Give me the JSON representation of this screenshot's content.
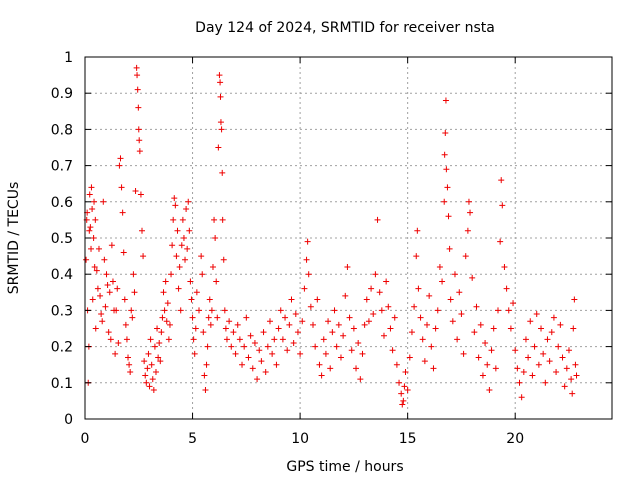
{
  "chart_data": {
    "type": "scatter",
    "title": "Day 124 of 2024, SRMTID for receiver nsta",
    "xlabel": "GPS time / hours",
    "ylabel": "SRMTID / TECUs",
    "xlim": [
      0,
      24.5
    ],
    "ylim": [
      0,
      1
    ],
    "xticks": [
      0,
      5,
      10,
      15,
      20
    ],
    "xtick_labels": [
      "0",
      "5",
      "10",
      "15",
      "20"
    ],
    "yticks": [
      0,
      0.1,
      0.2,
      0.3,
      0.4,
      0.5,
      0.6,
      0.7,
      0.8,
      0.9,
      1
    ],
    "ytick_labels": [
      "0",
      "0.1",
      "0.2",
      "0.3",
      "0.4",
      "0.5",
      "0.6",
      "0.7",
      "0.8",
      "0.9",
      "1"
    ],
    "grid": true,
    "marker": "+",
    "color": "#ee0000",
    "series": [
      {
        "name": "nsta",
        "points": [
          [
            0.05,
            0.44
          ],
          [
            0.08,
            0.55
          ],
          [
            0.1,
            0.57
          ],
          [
            0.12,
            0.3
          ],
          [
            0.15,
            0.1
          ],
          [
            0.18,
            0.2
          ],
          [
            0.2,
            0.52
          ],
          [
            0.22,
            0.62
          ],
          [
            0.25,
            0.53
          ],
          [
            0.28,
            0.47
          ],
          [
            0.3,
            0.64
          ],
          [
            0.33,
            0.58
          ],
          [
            0.36,
            0.33
          ],
          [
            0.4,
            0.5
          ],
          [
            0.42,
            0.6
          ],
          [
            0.45,
            0.42
          ],
          [
            0.48,
            0.55
          ],
          [
            0.5,
            0.25
          ],
          [
            0.55,
            0.41
          ],
          [
            0.6,
            0.36
          ],
          [
            0.65,
            0.47
          ],
          [
            0.7,
            0.34
          ],
          [
            0.75,
            0.29
          ],
          [
            0.8,
            0.27
          ],
          [
            0.85,
            0.6
          ],
          [
            0.9,
            0.44
          ],
          [
            0.95,
            0.31
          ],
          [
            1.0,
            0.4
          ],
          [
            1.05,
            0.37
          ],
          [
            1.1,
            0.24
          ],
          [
            1.15,
            0.35
          ],
          [
            1.2,
            0.22
          ],
          [
            1.25,
            0.48
          ],
          [
            1.3,
            0.38
          ],
          [
            1.35,
            0.3
          ],
          [
            1.4,
            0.18
          ],
          [
            1.45,
            0.3
          ],
          [
            1.5,
            0.36
          ],
          [
            1.55,
            0.21
          ],
          [
            1.6,
            0.7
          ],
          [
            1.65,
            0.72
          ],
          [
            1.7,
            0.64
          ],
          [
            1.75,
            0.57
          ],
          [
            1.8,
            0.46
          ],
          [
            1.85,
            0.33
          ],
          [
            1.9,
            0.26
          ],
          [
            1.95,
            0.22
          ],
          [
            2.0,
            0.17
          ],
          [
            2.05,
            0.15
          ],
          [
            2.1,
            0.13
          ],
          [
            2.15,
            0.3
          ],
          [
            2.2,
            0.28
          ],
          [
            2.25,
            0.4
          ],
          [
            2.3,
            0.35
          ],
          [
            2.35,
            0.63
          ],
          [
            2.4,
            0.97
          ],
          [
            2.42,
            0.95
          ],
          [
            2.45,
            0.91
          ],
          [
            2.48,
            0.86
          ],
          [
            2.5,
            0.8
          ],
          [
            2.52,
            0.77
          ],
          [
            2.55,
            0.74
          ],
          [
            2.6,
            0.62
          ],
          [
            2.65,
            0.52
          ],
          [
            2.7,
            0.45
          ],
          [
            2.75,
            0.16
          ],
          [
            2.8,
            0.12
          ],
          [
            2.85,
            0.1
          ],
          [
            2.9,
            0.14
          ],
          [
            2.95,
            0.18
          ],
          [
            3.0,
            0.09
          ],
          [
            3.05,
            0.22
          ],
          [
            3.1,
            0.15
          ],
          [
            3.15,
            0.11
          ],
          [
            3.2,
            0.08
          ],
          [
            3.25,
            0.2
          ],
          [
            3.3,
            0.13
          ],
          [
            3.35,
            0.25
          ],
          [
            3.4,
            0.17
          ],
          [
            3.45,
            0.21
          ],
          [
            3.5,
            0.16
          ],
          [
            3.55,
            0.24
          ],
          [
            3.6,
            0.28
          ],
          [
            3.65,
            0.35
          ],
          [
            3.7,
            0.3
          ],
          [
            3.75,
            0.38
          ],
          [
            3.8,
            0.27
          ],
          [
            3.85,
            0.32
          ],
          [
            3.9,
            0.22
          ],
          [
            3.95,
            0.26
          ],
          [
            4.0,
            0.4
          ],
          [
            4.05,
            0.48
          ],
          [
            4.1,
            0.55
          ],
          [
            4.15,
            0.61
          ],
          [
            4.2,
            0.59
          ],
          [
            4.25,
            0.45
          ],
          [
            4.3,
            0.52
          ],
          [
            4.35,
            0.36
          ],
          [
            4.4,
            0.42
          ],
          [
            4.45,
            0.3
          ],
          [
            4.5,
            0.48
          ],
          [
            4.55,
            0.55
          ],
          [
            4.6,
            0.5
          ],
          [
            4.65,
            0.44
          ],
          [
            4.7,
            0.58
          ],
          [
            4.75,
            0.47
          ],
          [
            4.8,
            0.6
          ],
          [
            4.85,
            0.52
          ],
          [
            4.9,
            0.38
          ],
          [
            4.95,
            0.33
          ],
          [
            5.0,
            0.28
          ],
          [
            5.05,
            0.22
          ],
          [
            5.1,
            0.18
          ],
          [
            5.15,
            0.25
          ],
          [
            5.2,
            0.35
          ],
          [
            5.3,
            0.3
          ],
          [
            5.4,
            0.45
          ],
          [
            5.45,
            0.4
          ],
          [
            5.5,
            0.24
          ],
          [
            5.55,
            0.12
          ],
          [
            5.6,
            0.08
          ],
          [
            5.65,
            0.15
          ],
          [
            5.7,
            0.2
          ],
          [
            5.75,
            0.28
          ],
          [
            5.8,
            0.33
          ],
          [
            5.85,
            0.26
          ],
          [
            5.9,
            0.3
          ],
          [
            5.95,
            0.42
          ],
          [
            6.0,
            0.55
          ],
          [
            6.05,
            0.5
          ],
          [
            6.1,
            0.38
          ],
          [
            6.15,
            0.28
          ],
          [
            6.2,
            0.75
          ],
          [
            6.25,
            0.95
          ],
          [
            6.28,
            0.93
          ],
          [
            6.3,
            0.89
          ],
          [
            6.32,
            0.82
          ],
          [
            6.35,
            0.8
          ],
          [
            6.38,
            0.68
          ],
          [
            6.4,
            0.55
          ],
          [
            6.45,
            0.44
          ],
          [
            6.5,
            0.3
          ],
          [
            6.55,
            0.25
          ],
          [
            6.6,
            0.22
          ],
          [
            6.7,
            0.27
          ],
          [
            6.8,
            0.2
          ],
          [
            6.9,
            0.24
          ],
          [
            7.0,
            0.18
          ],
          [
            7.1,
            0.26
          ],
          [
            7.2,
            0.22
          ],
          [
            7.3,
            0.15
          ],
          [
            7.4,
            0.2
          ],
          [
            7.5,
            0.28
          ],
          [
            7.6,
            0.17
          ],
          [
            7.7,
            0.23
          ],
          [
            7.8,
            0.14
          ],
          [
            7.9,
            0.21
          ],
          [
            8.0,
            0.11
          ],
          [
            8.1,
            0.19
          ],
          [
            8.2,
            0.16
          ],
          [
            8.3,
            0.24
          ],
          [
            8.4,
            0.13
          ],
          [
            8.5,
            0.2
          ],
          [
            8.6,
            0.27
          ],
          [
            8.7,
            0.18
          ],
          [
            8.8,
            0.22
          ],
          [
            8.9,
            0.15
          ],
          [
            9.0,
            0.25
          ],
          [
            9.1,
            0.3
          ],
          [
            9.2,
            0.22
          ],
          [
            9.3,
            0.28
          ],
          [
            9.4,
            0.19
          ],
          [
            9.5,
            0.26
          ],
          [
            9.6,
            0.33
          ],
          [
            9.7,
            0.21
          ],
          [
            9.8,
            0.29
          ],
          [
            9.9,
            0.24
          ],
          [
            10.0,
            0.18
          ],
          [
            10.1,
            0.27
          ],
          [
            10.2,
            0.36
          ],
          [
            10.3,
            0.44
          ],
          [
            10.35,
            0.49
          ],
          [
            10.4,
            0.4
          ],
          [
            10.5,
            0.31
          ],
          [
            10.6,
            0.26
          ],
          [
            10.7,
            0.2
          ],
          [
            10.8,
            0.33
          ],
          [
            10.9,
            0.15
          ],
          [
            11.0,
            0.12
          ],
          [
            11.1,
            0.22
          ],
          [
            11.2,
            0.18
          ],
          [
            11.3,
            0.27
          ],
          [
            11.4,
            0.14
          ],
          [
            11.5,
            0.24
          ],
          [
            11.6,
            0.3
          ],
          [
            11.7,
            0.2
          ],
          [
            11.8,
            0.26
          ],
          [
            11.9,
            0.17
          ],
          [
            12.0,
            0.23
          ],
          [
            12.1,
            0.34
          ],
          [
            12.2,
            0.42
          ],
          [
            12.3,
            0.28
          ],
          [
            12.4,
            0.19
          ],
          [
            12.5,
            0.25
          ],
          [
            12.6,
            0.14
          ],
          [
            12.7,
            0.21
          ],
          [
            12.8,
            0.11
          ],
          [
            12.9,
            0.18
          ],
          [
            13.0,
            0.26
          ],
          [
            13.1,
            0.33
          ],
          [
            13.2,
            0.27
          ],
          [
            13.3,
            0.36
          ],
          [
            13.4,
            0.29
          ],
          [
            13.5,
            0.4
          ],
          [
            13.6,
            0.55
          ],
          [
            13.7,
            0.35
          ],
          [
            13.8,
            0.3
          ],
          [
            13.9,
            0.23
          ],
          [
            14.0,
            0.38
          ],
          [
            14.1,
            0.31
          ],
          [
            14.2,
            0.25
          ],
          [
            14.3,
            0.19
          ],
          [
            14.4,
            0.28
          ],
          [
            14.5,
            0.15
          ],
          [
            14.6,
            0.1
          ],
          [
            14.7,
            0.07
          ],
          [
            14.75,
            0.04
          ],
          [
            14.8,
            0.05
          ],
          [
            14.85,
            0.09
          ],
          [
            14.9,
            0.13
          ],
          [
            15.0,
            0.08
          ],
          [
            15.1,
            0.17
          ],
          [
            15.2,
            0.24
          ],
          [
            15.3,
            0.31
          ],
          [
            15.4,
            0.45
          ],
          [
            15.45,
            0.52
          ],
          [
            15.5,
            0.36
          ],
          [
            15.6,
            0.28
          ],
          [
            15.7,
            0.22
          ],
          [
            15.8,
            0.16
          ],
          [
            15.9,
            0.26
          ],
          [
            16.0,
            0.34
          ],
          [
            16.1,
            0.2
          ],
          [
            16.2,
            0.14
          ],
          [
            16.3,
            0.25
          ],
          [
            16.4,
            0.3
          ],
          [
            16.5,
            0.42
          ],
          [
            16.6,
            0.38
          ],
          [
            16.7,
            0.6
          ],
          [
            16.72,
            0.73
          ],
          [
            16.75,
            0.79
          ],
          [
            16.78,
            0.88
          ],
          [
            16.8,
            0.69
          ],
          [
            16.85,
            0.64
          ],
          [
            16.9,
            0.56
          ],
          [
            16.95,
            0.47
          ],
          [
            17.0,
            0.33
          ],
          [
            17.1,
            0.27
          ],
          [
            17.2,
            0.4
          ],
          [
            17.3,
            0.22
          ],
          [
            17.4,
            0.35
          ],
          [
            17.5,
            0.29
          ],
          [
            17.6,
            0.18
          ],
          [
            17.7,
            0.45
          ],
          [
            17.8,
            0.52
          ],
          [
            17.85,
            0.6
          ],
          [
            17.9,
            0.57
          ],
          [
            18.0,
            0.39
          ],
          [
            18.1,
            0.24
          ],
          [
            18.2,
            0.31
          ],
          [
            18.3,
            0.17
          ],
          [
            18.4,
            0.26
          ],
          [
            18.5,
            0.12
          ],
          [
            18.6,
            0.21
          ],
          [
            18.7,
            0.15
          ],
          [
            18.8,
            0.08
          ],
          [
            18.9,
            0.19
          ],
          [
            19.0,
            0.25
          ],
          [
            19.1,
            0.14
          ],
          [
            19.2,
            0.3
          ],
          [
            19.3,
            0.49
          ],
          [
            19.35,
            0.66
          ],
          [
            19.4,
            0.59
          ],
          [
            19.5,
            0.42
          ],
          [
            19.6,
            0.36
          ],
          [
            19.7,
            0.3
          ],
          [
            19.8,
            0.25
          ],
          [
            19.9,
            0.32
          ],
          [
            20.0,
            0.19
          ],
          [
            20.1,
            0.14
          ],
          [
            20.2,
            0.1
          ],
          [
            20.3,
            0.06
          ],
          [
            20.4,
            0.13
          ],
          [
            20.5,
            0.22
          ],
          [
            20.6,
            0.17
          ],
          [
            20.7,
            0.27
          ],
          [
            20.8,
            0.12
          ],
          [
            20.9,
            0.2
          ],
          [
            21.0,
            0.29
          ],
          [
            21.1,
            0.15
          ],
          [
            21.2,
            0.25
          ],
          [
            21.3,
            0.18
          ],
          [
            21.4,
            0.1
          ],
          [
            21.5,
            0.22
          ],
          [
            21.6,
            0.16
          ],
          [
            21.7,
            0.24
          ],
          [
            21.8,
            0.28
          ],
          [
            21.9,
            0.13
          ],
          [
            22.0,
            0.2
          ],
          [
            22.1,
            0.26
          ],
          [
            22.2,
            0.17
          ],
          [
            22.3,
            0.09
          ],
          [
            22.4,
            0.14
          ],
          [
            22.5,
            0.19
          ],
          [
            22.6,
            0.11
          ],
          [
            22.65,
            0.07
          ],
          [
            22.7,
            0.25
          ],
          [
            22.75,
            0.33
          ],
          [
            22.8,
            0.15
          ],
          [
            22.85,
            0.12
          ]
        ]
      }
    ]
  }
}
